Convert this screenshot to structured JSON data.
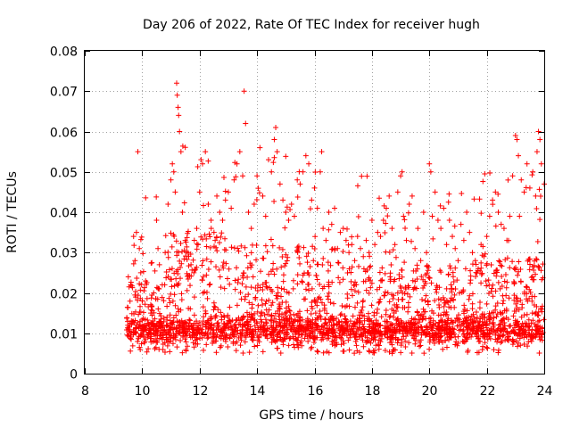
{
  "chart_data": {
    "type": "scatter",
    "title": "Day 206 of 2022, Rate Of TEC Index for receiver hugh",
    "xlabel": "GPS time / hours",
    "ylabel": "ROTI / TECUs",
    "xlim": [
      8,
      24
    ],
    "ylim": [
      0,
      0.08
    ],
    "x_ticks": [
      8,
      10,
      12,
      14,
      16,
      18,
      20,
      22,
      24
    ],
    "x_tick_labels": [
      "8",
      "10",
      "12",
      "14",
      "16",
      "18",
      "20",
      "22",
      "24"
    ],
    "y_ticks": [
      0,
      0.01,
      0.02,
      0.03,
      0.04,
      0.05,
      0.06,
      0.07,
      0.08
    ],
    "y_tick_labels": [
      "0",
      "0.01",
      "0.02",
      "0.03",
      "0.04",
      "0.05",
      "0.06",
      "0.07",
      "0.08"
    ],
    "grid": true,
    "marker": "+",
    "series": [
      {
        "name": "ROTI",
        "color": "#ff0000",
        "points": [
          [
            9.5,
            0.012
          ],
          [
            9.6,
            0.022
          ],
          [
            9.7,
            0.034
          ],
          [
            9.75,
            0.028
          ],
          [
            9.8,
            0.035
          ],
          [
            9.85,
            0.055
          ],
          [
            9.9,
            0.031
          ],
          [
            9.95,
            0.025
          ],
          [
            10.0,
            0.018
          ],
          [
            10.1,
            0.011
          ],
          [
            10.2,
            0.009
          ],
          [
            10.3,
            0.015
          ],
          [
            10.4,
            0.02
          ],
          [
            10.5,
            0.038
          ],
          [
            10.55,
            0.031
          ],
          [
            10.6,
            0.027
          ],
          [
            10.7,
            0.022
          ],
          [
            10.8,
            0.03
          ],
          [
            10.9,
            0.042
          ],
          [
            11.0,
            0.048
          ],
          [
            11.05,
            0.052
          ],
          [
            11.1,
            0.05
          ],
          [
            11.15,
            0.045
          ],
          [
            11.2,
            0.072
          ],
          [
            11.22,
            0.069
          ],
          [
            11.25,
            0.066
          ],
          [
            11.27,
            0.064
          ],
          [
            11.3,
            0.06
          ],
          [
            11.35,
            0.055
          ],
          [
            11.4,
            0.04
          ],
          [
            11.5,
            0.033
          ],
          [
            11.6,
            0.03
          ],
          [
            11.7,
            0.027
          ],
          [
            11.8,
            0.025
          ],
          [
            11.9,
            0.036
          ],
          [
            12.0,
            0.045
          ],
          [
            12.05,
            0.053
          ],
          [
            12.1,
            0.052
          ],
          [
            12.2,
            0.055
          ],
          [
            12.3,
            0.042
          ],
          [
            12.4,
            0.038
          ],
          [
            12.5,
            0.035
          ],
          [
            12.6,
            0.044
          ],
          [
            12.7,
            0.04
          ],
          [
            12.8,
            0.038
          ],
          [
            12.9,
            0.043
          ],
          [
            13.0,
            0.045
          ],
          [
            13.1,
            0.041
          ],
          [
            13.2,
            0.048
          ],
          [
            13.3,
            0.052
          ],
          [
            13.4,
            0.055
          ],
          [
            13.5,
            0.049
          ],
          [
            13.55,
            0.07
          ],
          [
            13.6,
            0.062
          ],
          [
            13.7,
            0.04
          ],
          [
            13.8,
            0.036
          ],
          [
            13.9,
            0.042
          ],
          [
            14.0,
            0.049
          ],
          [
            14.1,
            0.056
          ],
          [
            14.2,
            0.044
          ],
          [
            14.3,
            0.039
          ],
          [
            14.4,
            0.053
          ],
          [
            14.5,
            0.05
          ],
          [
            14.6,
            0.058
          ],
          [
            14.65,
            0.061
          ],
          [
            14.7,
            0.055
          ],
          [
            14.8,
            0.047
          ],
          [
            14.9,
            0.043
          ],
          [
            15.0,
            0.04
          ],
          [
            15.1,
            0.038
          ],
          [
            15.2,
            0.042
          ],
          [
            15.3,
            0.039
          ],
          [
            15.4,
            0.048
          ],
          [
            15.5,
            0.047
          ],
          [
            15.6,
            0.05
          ],
          [
            15.7,
            0.054
          ],
          [
            15.8,
            0.052
          ],
          [
            15.9,
            0.043
          ],
          [
            16.0,
            0.046
          ],
          [
            16.1,
            0.041
          ],
          [
            16.2,
            0.05
          ],
          [
            16.25,
            0.055
          ],
          [
            16.3,
            0.036
          ],
          [
            16.4,
            0.033
          ],
          [
            16.5,
            0.04
          ],
          [
            16.6,
            0.037
          ],
          [
            16.7,
            0.041
          ],
          [
            16.8,
            0.031
          ],
          [
            16.9,
            0.035
          ],
          [
            17.0,
            0.036
          ],
          [
            17.1,
            0.033
          ],
          [
            17.2,
            0.03
          ],
          [
            17.3,
            0.032
          ],
          [
            17.4,
            0.028
          ],
          [
            17.5,
            0.034
          ],
          [
            17.6,
            0.031
          ],
          [
            17.7,
            0.029
          ],
          [
            17.8,
            0.033
          ],
          [
            17.9,
            0.03
          ],
          [
            18.0,
            0.038
          ],
          [
            18.1,
            0.032
          ],
          [
            18.2,
            0.035
          ],
          [
            18.3,
            0.034
          ],
          [
            18.4,
            0.038
          ],
          [
            18.5,
            0.041
          ],
          [
            18.6,
            0.044
          ],
          [
            18.7,
            0.036
          ],
          [
            18.8,
            0.032
          ],
          [
            18.9,
            0.045
          ],
          [
            19.0,
            0.049
          ],
          [
            19.05,
            0.05
          ],
          [
            19.1,
            0.039
          ],
          [
            19.2,
            0.033
          ],
          [
            19.3,
            0.042
          ],
          [
            19.4,
            0.044
          ],
          [
            19.5,
            0.031
          ],
          [
            19.6,
            0.036
          ],
          [
            19.7,
            0.028
          ],
          [
            19.8,
            0.04
          ],
          [
            19.9,
            0.03
          ],
          [
            20.0,
            0.052
          ],
          [
            20.05,
            0.05
          ],
          [
            20.1,
            0.039
          ],
          [
            20.2,
            0.045
          ],
          [
            20.3,
            0.038
          ],
          [
            20.4,
            0.036
          ],
          [
            20.5,
            0.041
          ],
          [
            20.6,
            0.032
          ],
          [
            20.7,
            0.038
          ],
          [
            20.8,
            0.034
          ],
          [
            20.9,
            0.031
          ],
          [
            21.0,
            0.028
          ],
          [
            21.1,
            0.037
          ],
          [
            21.2,
            0.033
          ],
          [
            21.3,
            0.04
          ],
          [
            21.4,
            0.035
          ],
          [
            21.5,
            0.03
          ],
          [
            21.6,
            0.028
          ],
          [
            21.7,
            0.026
          ],
          [
            21.8,
            0.032
          ],
          [
            21.9,
            0.029
          ],
          [
            22.0,
            0.034
          ],
          [
            22.1,
            0.039
          ],
          [
            22.2,
            0.043
          ],
          [
            22.3,
            0.045
          ],
          [
            22.4,
            0.04
          ],
          [
            22.5,
            0.037
          ],
          [
            22.6,
            0.036
          ],
          [
            22.7,
            0.033
          ],
          [
            22.8,
            0.039
          ],
          [
            22.9,
            0.049
          ],
          [
            23.0,
            0.059
          ],
          [
            23.05,
            0.058
          ],
          [
            23.1,
            0.054
          ],
          [
            23.2,
            0.048
          ],
          [
            23.3,
            0.045
          ],
          [
            23.4,
            0.052
          ],
          [
            23.5,
            0.046
          ],
          [
            23.6,
            0.05
          ],
          [
            23.7,
            0.044
          ],
          [
            23.75,
            0.055
          ],
          [
            23.8,
            0.06
          ],
          [
            23.85,
            0.058
          ],
          [
            23.9,
            0.052
          ],
          [
            24.0,
            0.047
          ]
        ]
      }
    ]
  }
}
